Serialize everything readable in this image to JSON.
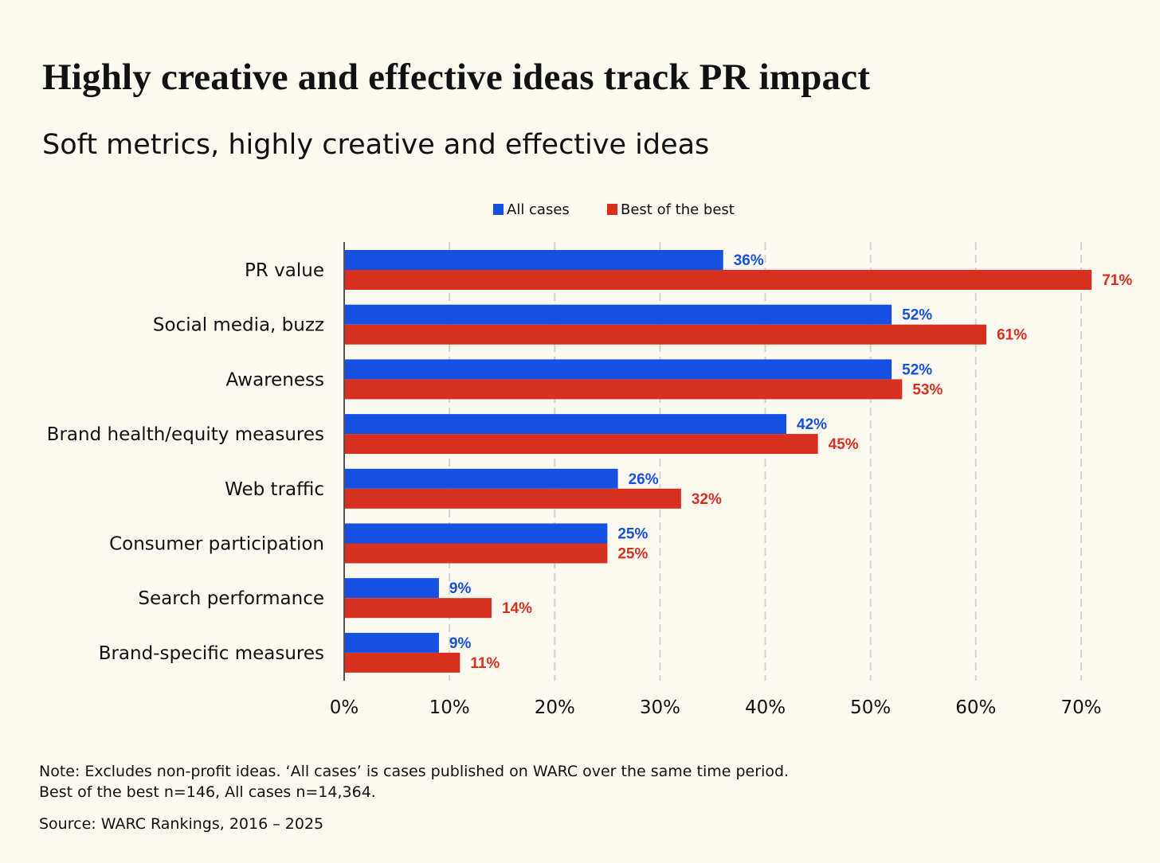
{
  "title": "Highly creative and effective ideas track PR impact",
  "subtitle": "Soft metrics, highly creative and effective ideas",
  "colors": {
    "all_cases": "#1550e0",
    "best": "#d7301f",
    "background": "#fcf9f0"
  },
  "chart_data": {
    "type": "bar",
    "orientation": "horizontal",
    "categories": [
      "PR value",
      "Social media, buzz",
      "Awareness",
      "Brand health/equity measures",
      "Web traffic",
      "Consumer participation",
      "Search performance",
      "Brand-specific measures"
    ],
    "series": [
      {
        "name": "All cases",
        "values": [
          36,
          52,
          52,
          42,
          26,
          25,
          9,
          9
        ],
        "labels": [
          "36%",
          "52%",
          "52%",
          "42%",
          "26%",
          "25%",
          "9%",
          "9%"
        ]
      },
      {
        "name": "Best of the best",
        "values": [
          71,
          61,
          53,
          45,
          32,
          25,
          14,
          11
        ],
        "labels": [
          "71%",
          "61%",
          "53%",
          "45%",
          "32%",
          "25%",
          "14%",
          "11%"
        ]
      }
    ],
    "xlim": [
      0,
      70
    ],
    "xticks": [
      0,
      10,
      20,
      30,
      40,
      50,
      60,
      70
    ],
    "xtick_labels": [
      "0%",
      "10%",
      "20%",
      "30%",
      "40%",
      "50%",
      "60%",
      "70%"
    ],
    "grid": true,
    "legend": "top-center"
  },
  "notes": [
    "Note: Excludes non-profit ideas. ‘All cases’ is cases published on WARC over the same time period.",
    "Best of the best n=146, All cases n=14,364.",
    "Source: WARC Rankings, 2016 – 2025"
  ]
}
